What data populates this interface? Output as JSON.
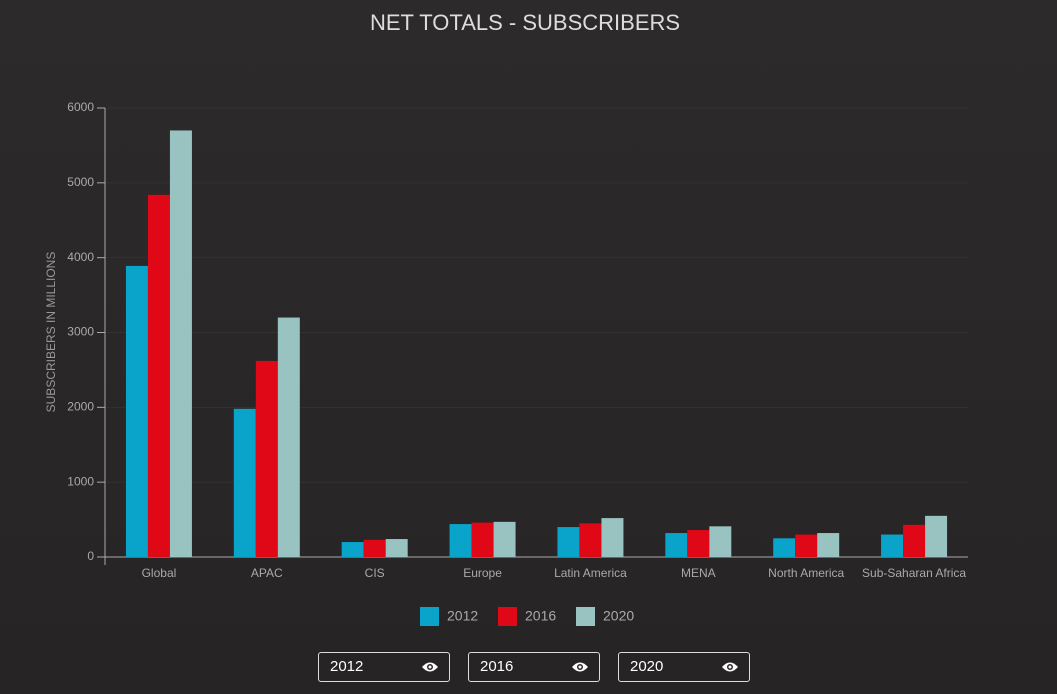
{
  "chart_data": {
    "type": "bar",
    "title": "NET TOTALS - SUBSCRIBERS",
    "y_label": "SUBSCRIBERS IN MILLIONS",
    "categories": [
      "Global",
      "APAC",
      "CIS",
      "Europe",
      "Latin America",
      "MENA",
      "North America",
      "Sub-Saharan Africa"
    ],
    "series": [
      {
        "name": "2012",
        "color": "#0aa3c9",
        "values": [
          3890,
          1980,
          200,
          440,
          400,
          320,
          250,
          300
        ]
      },
      {
        "name": "2016",
        "color": "#e00716",
        "values": [
          4840,
          2620,
          230,
          460,
          450,
          360,
          300,
          430
        ]
      },
      {
        "name": "2020",
        "color": "#98c3c1",
        "values": [
          5700,
          3200,
          240,
          470,
          520,
          410,
          320,
          550
        ]
      }
    ],
    "ylim": [
      0,
      6000
    ],
    "yticks": [
      0,
      1000,
      2000,
      3000,
      4000,
      5000,
      6000
    ],
    "grid": true
  }
}
